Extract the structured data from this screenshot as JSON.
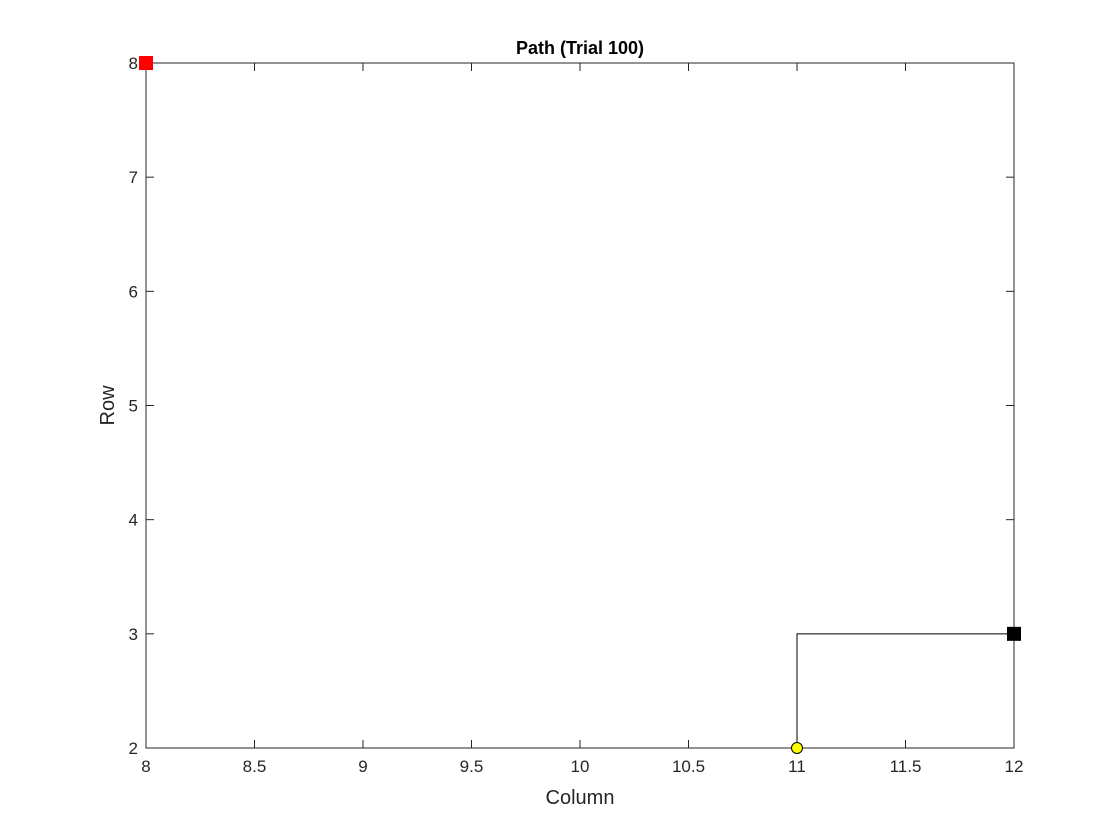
{
  "chart_data": {
    "type": "line",
    "title": "Path (Trial 100)",
    "xlabel": "Column",
    "ylabel": "Row",
    "xlim": [
      8,
      12
    ],
    "ylim": [
      2,
      8
    ],
    "xticks": [
      8,
      8.5,
      9,
      9.5,
      10,
      10.5,
      11,
      11.5,
      12
    ],
    "xtick_labels": [
      "8",
      "8.5",
      "9",
      "9.5",
      "10",
      "10.5",
      "11",
      "11.5",
      "12"
    ],
    "yticks": [
      2,
      3,
      4,
      5,
      6,
      7,
      8
    ],
    "ytick_labels": [
      "2",
      "3",
      "4",
      "5",
      "6",
      "7",
      "8"
    ],
    "grid": false,
    "series": [
      {
        "x": [
          11,
          11,
          12
        ],
        "y": [
          2,
          3,
          3
        ],
        "color": "#000000"
      }
    ],
    "markers": [
      {
        "x": 8,
        "y": 8,
        "shape": "square",
        "color": "#ff0000"
      },
      {
        "x": 12,
        "y": 3,
        "shape": "square",
        "color": "#000000"
      },
      {
        "x": 11,
        "y": 2,
        "shape": "circle",
        "color": "#ffff00",
        "edge": "#000000"
      }
    ]
  }
}
